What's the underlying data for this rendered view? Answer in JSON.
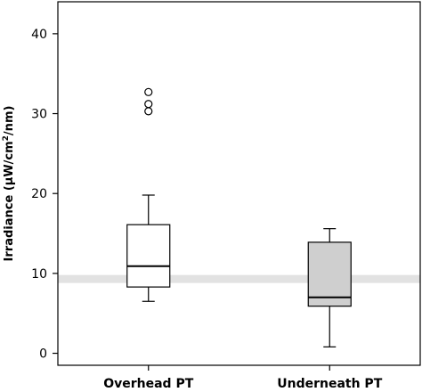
{
  "chart_data": {
    "type": "boxplot",
    "ylabel_parts": {
      "before": "Irradiance (μW/cm",
      "sup": "2",
      "after": "/nm)"
    },
    "ylim": [
      -1.5,
      44
    ],
    "yticks": [
      "0",
      "10",
      "20",
      "30",
      "40"
    ],
    "reference_band": [
      8.8,
      9.8
    ],
    "categories": [
      "Overhead PT",
      "Underneath PT"
    ],
    "boxes": [
      {
        "category": "Overhead PT",
        "whisker_low": 6.5,
        "q1": 8.3,
        "median": 10.9,
        "q3": 16.1,
        "whisker_high": 19.8,
        "outliers": [
          30.3,
          31.2,
          32.7
        ],
        "fill": "#ffffff"
      },
      {
        "category": "Underneath PT",
        "whisker_low": 0.8,
        "q1": 5.9,
        "median": 7.0,
        "q3": 13.9,
        "whisker_high": 15.6,
        "outliers": [],
        "fill": "#cfcfcf"
      }
    ],
    "grid": false,
    "colors": {
      "band": "#e2e2e2",
      "stroke": "#000000"
    }
  }
}
